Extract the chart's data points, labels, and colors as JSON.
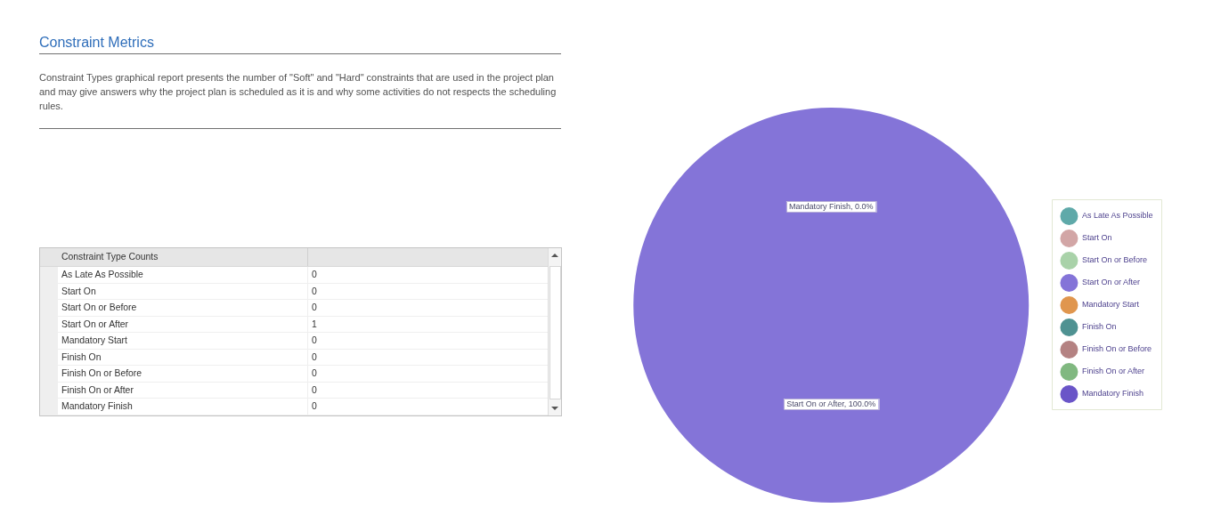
{
  "chart_data": [
    {
      "type": "other",
      "title": "Constraint Metrics",
      "subtitle": "Constraint Types graphical report presents the number of \"Soft\" and \"Hard\" constraints that are used in the project plan and may give answers why the project plan is scheduled as it is and why some activities do not respects the scheduling rules.",
      "annotations": [
        "Constraint Type Counts"
      ],
      "categories": [
        "As Late As Possible",
        "Start On",
        "Start On or Before",
        "Start On or After",
        "Mandatory Start",
        "Finish On",
        "Finish On or Before",
        "Finish On or After",
        "Mandatory Finish"
      ],
      "values": [
        0,
        0,
        0,
        1,
        0,
        0,
        0,
        0,
        0
      ],
      "data_labels": true
    },
    {
      "type": "pie",
      "categories": [
        "As Late As Possible",
        "Start On",
        "Start On or Before",
        "Start On or After",
        "Mandatory Start",
        "Finish On",
        "Finish On or Before",
        "Finish On or After",
        "Mandatory Finish"
      ],
      "values": [
        0,
        0,
        0,
        100,
        0,
        0,
        0,
        0,
        0
      ],
      "colors": [
        "#5fa9a9",
        "#d2a6a6",
        "#a9d2a9",
        "#8474d8",
        "#e0964e",
        "#4f9292",
        "#b48282",
        "#80b880",
        "#6a55c8"
      ],
      "value_labels": [
        null,
        null,
        null,
        "Start On or After, 100.0%",
        null,
        null,
        null,
        null,
        "Mandatory Finish, 0.0%"
      ],
      "legend": "right"
    }
  ]
}
